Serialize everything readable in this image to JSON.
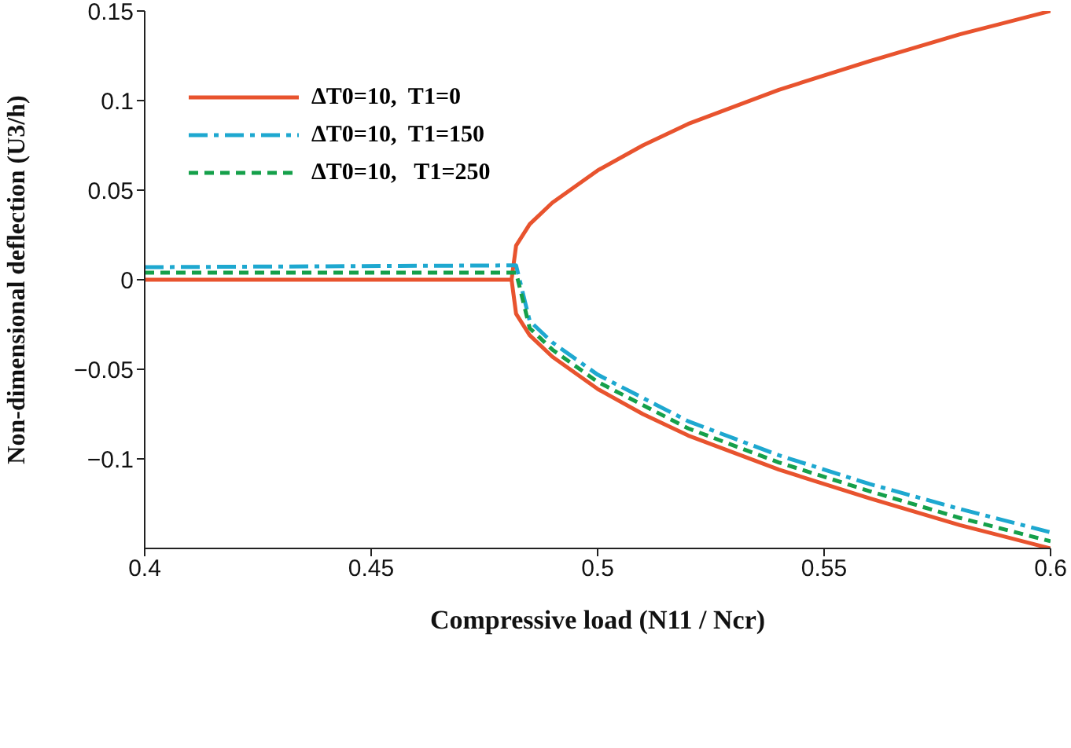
{
  "chart_data": {
    "type": "line",
    "xlabel": "Compressive load  (N11 / Ncr)",
    "ylabel": "Non-dimensional deflection  (U3/h)",
    "xlim": [
      0.4,
      0.6
    ],
    "xticks": [
      0.4,
      0.45,
      0.5,
      0.55,
      0.6
    ],
    "ylim": [
      -0.15,
      0.15
    ],
    "yticks": [
      -0.1,
      -0.05,
      0,
      0.05,
      0.1,
      0.15
    ],
    "grid": false,
    "legend": "top left",
    "marker": "none",
    "series": [
      {
        "name": "ΔT0=10,  T1=0",
        "color": "#e8532e",
        "line_style": "solid",
        "x": [
          0.4,
          0.481,
          0.482,
          0.485,
          0.49,
          0.5,
          0.51,
          0.52,
          0.54,
          0.56,
          0.58,
          0.6
        ],
        "values": [
          0,
          0,
          0.019,
          0.031,
          0.043,
          0.061,
          0.075,
          0.087,
          0.106,
          0.122,
          0.137,
          0.15
        ]
      },
      {
        "color": "#e8532e",
        "line_style": "solid",
        "x": [
          0.481,
          0.482,
          0.485,
          0.49,
          0.5,
          0.51,
          0.52,
          0.54,
          0.56,
          0.58,
          0.6
        ],
        "values": [
          0,
          -0.019,
          -0.031,
          -0.043,
          -0.061,
          -0.075,
          -0.087,
          -0.106,
          -0.122,
          -0.137,
          -0.15
        ]
      },
      {
        "name": "ΔT0=10,  T1=150",
        "color": "#1ea8d0",
        "line_style": "dashdot",
        "x": [
          0.4,
          0.482,
          0.485,
          0.49,
          0.5,
          0.52,
          0.54,
          0.56,
          0.58,
          0.6
        ],
        "values": [
          0.007,
          0.008,
          -0.023,
          -0.035,
          -0.053,
          -0.079,
          -0.098,
          -0.114,
          -0.128,
          -0.141
        ]
      },
      {
        "name": "ΔT0=10,   T1=250",
        "color": "#15a04a",
        "line_style": "dashed",
        "x": [
          0.4,
          0.482,
          0.485,
          0.49,
          0.5,
          0.52,
          0.54,
          0.56,
          0.58,
          0.6
        ],
        "values": [
          0.004,
          0.004,
          -0.027,
          -0.039,
          -0.057,
          -0.083,
          -0.102,
          -0.118,
          -0.133,
          -0.146
        ]
      }
    ]
  }
}
